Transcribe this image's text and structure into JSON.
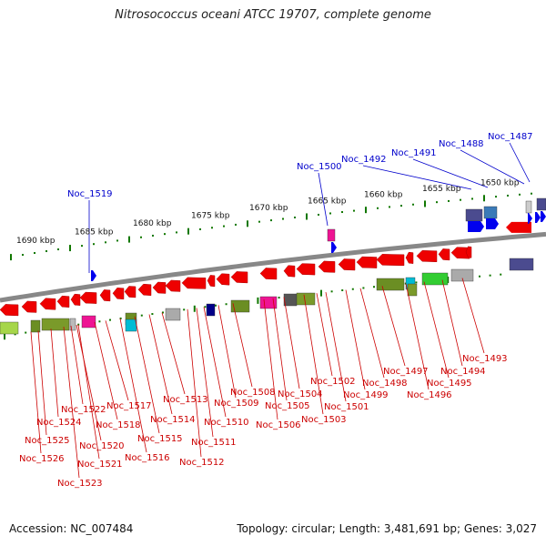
{
  "title": "Nitrosococcus oceani ATCC 19707, complete genome",
  "footer": {
    "accession": "Accession: NC_007484",
    "topology": "Topology: circular; Length: 3,481,691 bp; Genes: 3,027"
  },
  "colors": {
    "gene_label_top": "#0000cc",
    "gene_label_bottom": "#cc0000",
    "forward_gene": "#0000ee",
    "reverse_gene": "#ee0000",
    "tick_mark": "#117700",
    "backbone": "#888888"
  },
  "scale_labels": [
    "1690 kbp",
    "1685 kbp",
    "1680 kbp",
    "1675 kbp",
    "1670 kbp",
    "1665 kbp",
    "1660 kbp",
    "1655 kbp",
    "1650 kbp"
  ],
  "top_genes": [
    "Noc_1519",
    "Noc_1500",
    "Noc_1492",
    "Noc_1491",
    "Noc_1488",
    "Noc_1487"
  ],
  "bottom_genes": [
    "Noc_1526",
    "Noc_1525",
    "Noc_1524",
    "Noc_1523",
    "Noc_1522",
    "Noc_1521",
    "Noc_1520",
    "Noc_1518",
    "Noc_1517",
    "Noc_1516",
    "Noc_1515",
    "Noc_1514",
    "Noc_1513",
    "Noc_1512",
    "Noc_1511",
    "Noc_1510",
    "Noc_1509",
    "Noc_1508",
    "Noc_1506",
    "Noc_1505",
    "Noc_1504",
    "Noc_1503",
    "Noc_1502",
    "Noc_1501",
    "Noc_1499",
    "Noc_1498",
    "Noc_1497",
    "Noc_1496",
    "Noc_1495",
    "Noc_1494",
    "Noc_1493"
  ]
}
